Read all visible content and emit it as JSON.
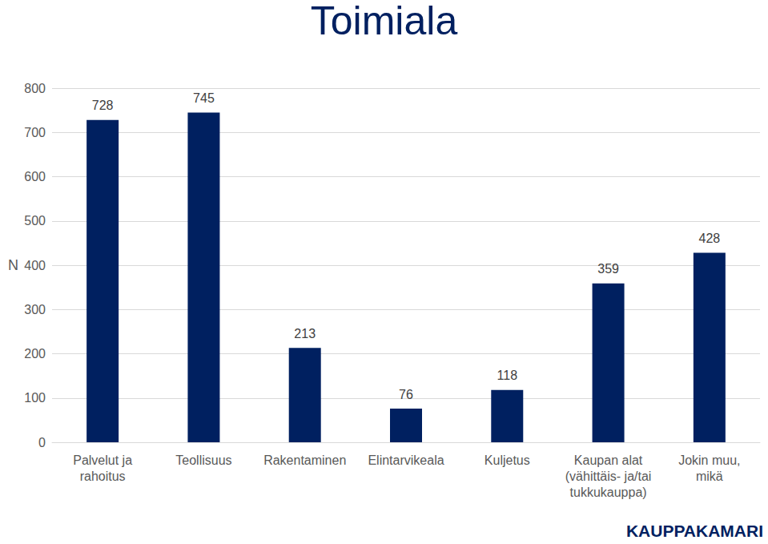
{
  "chart_data": {
    "type": "bar",
    "title": "Toimiala",
    "y_label": "N",
    "categories": [
      "Palvelut ja\nrahoitus",
      "Teollisuus",
      "Rakentaminen",
      "Elintarvikeala",
      "Kuljetus",
      "Kaupan alat\n(vähittäis- ja/tai\ntukkukauppa)",
      "Jokin muu,\nmikä"
    ],
    "values": [
      728,
      745,
      213,
      76,
      118,
      359,
      428
    ],
    "color": "#002060",
    "ylim": [
      0,
      800
    ],
    "yticks": [
      0,
      100,
      200,
      300,
      400,
      500,
      600,
      700,
      800
    ],
    "grid": true,
    "data_labels": true,
    "annotations": [
      {
        "text": "KAUPPAKAMARI"
      }
    ]
  }
}
